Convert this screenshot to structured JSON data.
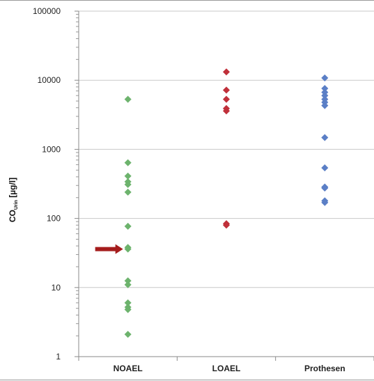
{
  "chart_data": {
    "type": "scatter",
    "y_scale": "log",
    "ylim": [
      1,
      100000
    ],
    "grid": true,
    "legend": "none",
    "ylabel": {
      "main": "CO",
      "sub": "Urin",
      "unit": " [µg/l]"
    },
    "y_tick_labels": [
      "1",
      "10",
      "100",
      "1000",
      "10000",
      "100000"
    ],
    "y_tick_values": [
      1,
      10,
      100,
      1000,
      10000,
      100000
    ],
    "categories": [
      "NOAEL",
      "LOAEL",
      "Prothesen"
    ],
    "series": [
      {
        "category": "NOAEL",
        "color": "#6db36d",
        "values": [
          5300,
          640,
          410,
          340,
          310,
          240,
          77,
          38,
          36,
          12.5,
          11,
          6,
          5.2,
          4.8,
          2.1
        ]
      },
      {
        "category": "LOAEL",
        "color": "#c0303a",
        "values": [
          13200,
          7200,
          5300,
          3900,
          3600,
          84,
          80
        ]
      },
      {
        "category": "Prothesen",
        "color": "#5b7fc6",
        "values": [
          10800,
          7600,
          6700,
          6000,
          5300,
          4800,
          4300,
          1480,
          540,
          285,
          275,
          180,
          170
        ]
      }
    ],
    "annotation": {
      "type": "arrow",
      "category": "NOAEL",
      "value": 36,
      "color": "#a51c1c"
    }
  }
}
